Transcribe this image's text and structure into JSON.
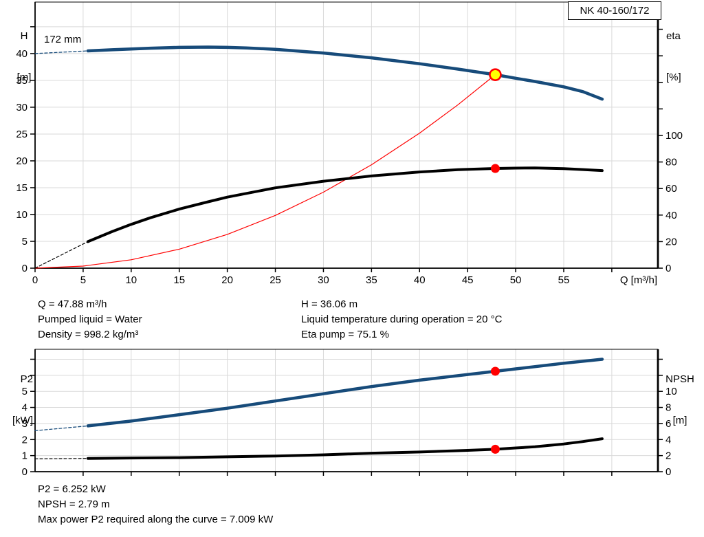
{
  "pump_name": "NK 40-160/172",
  "chart_data": [
    {
      "type": "line",
      "title": "NK 40-160/172",
      "annotation": "172 mm",
      "xlabel": "Q [m³/h]",
      "left_axis_title": [
        "H",
        "[m]"
      ],
      "right_axis_title": [
        "eta",
        "[%]"
      ],
      "xlim": [
        0,
        64.8
      ],
      "ylim_left": [
        0,
        49.6
      ],
      "ylim_right": [
        0,
        200.5
      ],
      "grid": true,
      "x_ticks": [
        {
          "v": 0,
          "label": "0"
        },
        {
          "v": 5,
          "label": "5"
        },
        {
          "v": 10,
          "label": "10"
        },
        {
          "v": 15,
          "label": "15"
        },
        {
          "v": 20,
          "label": "20"
        },
        {
          "v": 25,
          "label": "25"
        },
        {
          "v": 30,
          "label": "30"
        },
        {
          "v": 35,
          "label": "35"
        },
        {
          "v": 40,
          "label": "40"
        },
        {
          "v": 45,
          "label": "45"
        },
        {
          "v": 50,
          "label": "50"
        },
        {
          "v": 55,
          "label": "55"
        },
        {
          "v": 60,
          "label": ""
        }
      ],
      "left_ticks": [
        {
          "v": 0,
          "label": "0"
        },
        {
          "v": 5,
          "label": "5"
        },
        {
          "v": 10,
          "label": "10"
        },
        {
          "v": 15,
          "label": "15"
        },
        {
          "v": 20,
          "label": "20"
        },
        {
          "v": 25,
          "label": "25"
        },
        {
          "v": 30,
          "label": "30"
        },
        {
          "v": 35,
          "label": "35"
        },
        {
          "v": 40,
          "label": "40"
        },
        {
          "v": 45,
          "label": ""
        }
      ],
      "right_ticks": [
        {
          "v": 0,
          "label": "0"
        },
        {
          "v": 20,
          "label": "20"
        },
        {
          "v": 40,
          "label": "40"
        },
        {
          "v": 60,
          "label": "60"
        },
        {
          "v": 80,
          "label": "80"
        },
        {
          "v": 100,
          "label": "100"
        },
        {
          "v": 120,
          "label": ""
        },
        {
          "v": 140,
          "label": ""
        },
        {
          "v": 160,
          "label": ""
        },
        {
          "v": 180,
          "label": ""
        }
      ],
      "series": [
        {
          "name": "head-curve-dashed",
          "axis": "left",
          "color": "#174b7a",
          "width": 1.3,
          "dash": "4 3",
          "x": [
            0,
            5.5
          ],
          "y": [
            40,
            40.5
          ]
        },
        {
          "name": "head-curve",
          "axis": "left",
          "color": "#174b7a",
          "width": 4.5,
          "dash": "",
          "x": [
            5.5,
            8,
            10,
            12,
            15,
            18,
            20,
            22,
            25,
            30,
            35,
            40,
            44,
            47.88,
            50,
            52,
            55,
            57,
            59
          ],
          "y": [
            40.5,
            40.7,
            40.85,
            41.0,
            41.15,
            41.2,
            41.15,
            41.05,
            40.8,
            40.1,
            39.2,
            38.1,
            37.1,
            36.06,
            35.4,
            34.8,
            33.8,
            32.9,
            31.5
          ]
        },
        {
          "name": "system-curve",
          "axis": "left",
          "color": "#ff0000",
          "width": 1.2,
          "dash": "",
          "x": [
            0,
            5,
            10,
            15,
            20,
            25,
            30,
            35,
            40,
            44,
            47.88
          ],
          "y": [
            0,
            0.39,
            1.57,
            3.54,
            6.29,
            9.83,
            14.16,
            19.27,
            25.17,
            30.46,
            36.06
          ]
        },
        {
          "name": "eta-curve-dashed",
          "axis": "right",
          "color": "#000000",
          "width": 1.2,
          "dash": "4 3",
          "x": [
            0,
            5.5
          ],
          "y": [
            0,
            20
          ]
        },
        {
          "name": "eta-curve",
          "axis": "right",
          "color": "#000000",
          "width": 4,
          "dash": "",
          "x": [
            5.5,
            8,
            10,
            12,
            15,
            18,
            20,
            25,
            30,
            35,
            40,
            44,
            47.88,
            50,
            52,
            55,
            57,
            59
          ],
          "y": [
            20,
            27.5,
            33,
            38,
            44.5,
            50,
            53.5,
            60.5,
            65.5,
            69.5,
            72.5,
            74.2,
            75.1,
            75.4,
            75.5,
            75.0,
            74.3,
            73.5
          ]
        }
      ],
      "markers": [
        {
          "name": "duty-point-marker",
          "x": 47.88,
          "y": 36.06,
          "axis": "left",
          "r": 8,
          "fill": "#ffff00",
          "stroke": "#ff0000",
          "stroke_width": 2.6
        },
        {
          "name": "eta-point-marker",
          "x": 47.88,
          "y": 75.1,
          "axis": "right",
          "r": 6.5,
          "fill": "#ff0000",
          "stroke": "none",
          "stroke_width": 0
        }
      ]
    },
    {
      "type": "line",
      "title": "",
      "xlabel": "",
      "left_axis_title": [
        "P2",
        "[kW]"
      ],
      "right_axis_title": [
        "NPSH",
        "[m]"
      ],
      "xlim": [
        0,
        64.8
      ],
      "ylim_left": [
        0,
        7.62
      ],
      "ylim_right": [
        0,
        15.24
      ],
      "grid": true,
      "x_ticks": [
        {
          "v": 5,
          "label": ""
        },
        {
          "v": 10,
          "label": ""
        },
        {
          "v": 15,
          "label": ""
        },
        {
          "v": 20,
          "label": ""
        },
        {
          "v": 25,
          "label": ""
        },
        {
          "v": 30,
          "label": ""
        },
        {
          "v": 35,
          "label": ""
        },
        {
          "v": 40,
          "label": ""
        },
        {
          "v": 45,
          "label": ""
        },
        {
          "v": 50,
          "label": ""
        },
        {
          "v": 55,
          "label": ""
        },
        {
          "v": 60,
          "label": ""
        }
      ],
      "left_ticks": [
        {
          "v": 0,
          "label": "0"
        },
        {
          "v": 1,
          "label": "1"
        },
        {
          "v": 2,
          "label": "2"
        },
        {
          "v": 3,
          "label": "3"
        },
        {
          "v": 4,
          "label": "4"
        },
        {
          "v": 5,
          "label": "5"
        },
        {
          "v": 6,
          "label": ""
        },
        {
          "v": 7,
          "label": ""
        }
      ],
      "right_ticks": [
        {
          "v": 0,
          "label": "0"
        },
        {
          "v": 2,
          "label": "2"
        },
        {
          "v": 4,
          "label": "4"
        },
        {
          "v": 6,
          "label": "6"
        },
        {
          "v": 8,
          "label": "8"
        },
        {
          "v": 10,
          "label": "10"
        },
        {
          "v": 12,
          "label": ""
        },
        {
          "v": 14,
          "label": ""
        }
      ],
      "series": [
        {
          "name": "p2-curve-dashed",
          "axis": "left",
          "color": "#174b7a",
          "width": 1.3,
          "dash": "4 3",
          "x": [
            0,
            5.5
          ],
          "y": [
            2.55,
            2.85
          ]
        },
        {
          "name": "p2-curve",
          "axis": "left",
          "color": "#174b7a",
          "width": 4.5,
          "dash": "",
          "x": [
            5.5,
            10,
            15,
            20,
            25,
            30,
            35,
            40,
            45,
            47.88,
            50,
            55,
            59
          ],
          "y": [
            2.85,
            3.15,
            3.55,
            3.95,
            4.4,
            4.85,
            5.3,
            5.7,
            6.05,
            6.252,
            6.4,
            6.75,
            7.0
          ]
        },
        {
          "name": "npsh-curve-dashed",
          "axis": "right",
          "color": "#000000",
          "width": 1.2,
          "dash": "4 3",
          "x": [
            0,
            5.5
          ],
          "y": [
            1.6,
            1.65
          ]
        },
        {
          "name": "npsh-curve",
          "axis": "right",
          "color": "#000000",
          "width": 4,
          "dash": "",
          "x": [
            5.5,
            10,
            15,
            20,
            25,
            30,
            35,
            40,
            45,
            47.88,
            50,
            52,
            55,
            57,
            59
          ],
          "y": [
            1.65,
            1.7,
            1.75,
            1.85,
            1.95,
            2.1,
            2.3,
            2.45,
            2.65,
            2.79,
            2.95,
            3.1,
            3.45,
            3.75,
            4.1
          ]
        }
      ],
      "markers": [
        {
          "name": "p2-point-marker",
          "x": 47.88,
          "y": 6.252,
          "axis": "left",
          "r": 6.5,
          "fill": "#ff0000",
          "stroke": "none",
          "stroke_width": 0
        },
        {
          "name": "npsh-point-marker",
          "x": 47.88,
          "y": 2.79,
          "axis": "right",
          "r": 6.5,
          "fill": "#ff0000",
          "stroke": "none",
          "stroke_width": 0
        }
      ]
    }
  ],
  "operating_point": {
    "left": [
      "Q = 47.88 m³/h",
      "Pumped liquid = Water",
      "Density = 998.2 kg/m³"
    ],
    "right": [
      "H = 36.06 m",
      "Liquid temperature during operation = 20 °C",
      "Eta pump = 75.1 %"
    ]
  },
  "bottom_info": [
    "P2 = 6.252 kW",
    "NPSH = 2.79 m",
    "Max power P2 required along the curve = 7.009 kW"
  ],
  "colors": {
    "curve_blue": "#174b7a",
    "curve_black": "#000000",
    "system_red": "#ff0000",
    "marker_yellow": "#ffff00",
    "grid": "#d9d9d9"
  }
}
